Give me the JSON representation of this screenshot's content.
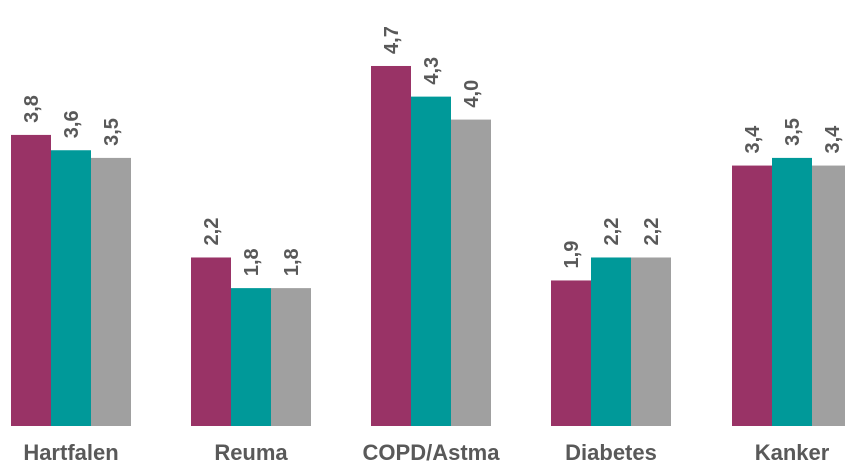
{
  "chart_data": {
    "type": "bar",
    "categories": [
      "Hartfalen",
      "Reuma",
      "COPD/Astma",
      "Diabetes",
      "Kanker"
    ],
    "series": [
      {
        "color": "#993366",
        "values": [
          3.8,
          2.2,
          4.7,
          1.9,
          3.4
        ],
        "labels": [
          "3,8",
          "2,2",
          "4,7",
          "1,9",
          "3,4"
        ]
      },
      {
        "color": "#009999",
        "values": [
          3.6,
          1.8,
          4.3,
          2.2,
          3.5
        ],
        "labels": [
          "3,6",
          "1,8",
          "4,3",
          "2,2",
          "3,5"
        ]
      },
      {
        "color": "#A0A0A0",
        "values": [
          3.5,
          1.8,
          4.0,
          2.2,
          3.4
        ],
        "labels": [
          "3,5",
          "1,8",
          "4,0",
          "2,2",
          "3,4"
        ]
      }
    ],
    "ylim": [
      0,
      5.6
    ],
    "grid": false,
    "legend": "none",
    "data_labels": "rotated vertical above bars"
  }
}
